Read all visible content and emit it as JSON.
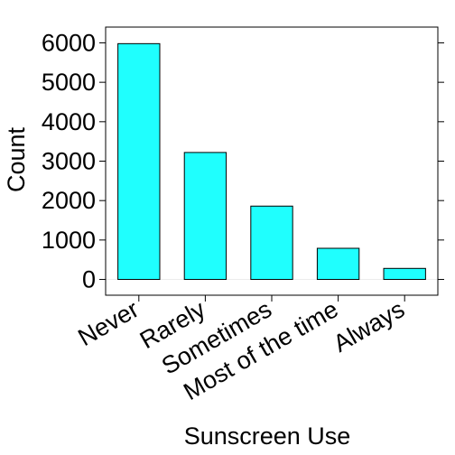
{
  "chart_data": {
    "type": "bar",
    "xlabel": "Sunscreen Use",
    "ylabel": "Count",
    "categories": [
      "Never",
      "Rarely",
      "Sometimes",
      "Most of the time",
      "Always"
    ],
    "values": [
      5980,
      3220,
      1860,
      790,
      280
    ],
    "ylim": [
      -400,
      6400
    ],
    "yticks": [
      0,
      1000,
      2000,
      3000,
      4000,
      5000,
      6000
    ],
    "grid": false,
    "bar_color": "#1ffffe",
    "bar_edge_color": "#000000",
    "zero_line_color": "#ececec"
  }
}
